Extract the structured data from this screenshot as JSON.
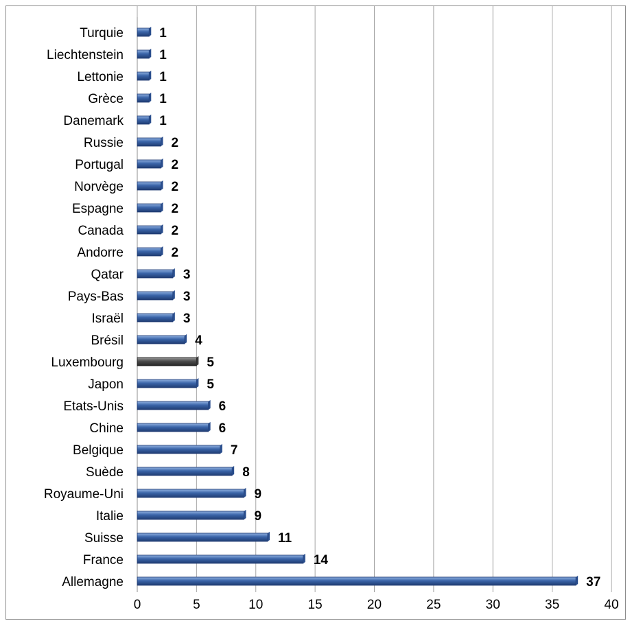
{
  "chart_data": {
    "type": "bar",
    "orientation": "horizontal",
    "categories": [
      "Turquie",
      "Liechtenstein",
      "Lettonie",
      "Grèce",
      "Danemark",
      "Russie",
      "Portugal",
      "Norvège",
      "Espagne",
      "Canada",
      "Andorre",
      "Qatar",
      "Pays-Bas",
      "Israël",
      "Brésil",
      "Luxembourg",
      "Japon",
      "Etats-Unis",
      "Chine",
      "Belgique",
      "Suède",
      "Royaume-Uni",
      "Italie",
      "Suisse",
      "France",
      "Allemagne"
    ],
    "values": [
      1,
      1,
      1,
      1,
      1,
      2,
      2,
      2,
      2,
      2,
      2,
      3,
      3,
      3,
      4,
      5,
      5,
      6,
      6,
      7,
      8,
      9,
      9,
      11,
      14,
      37
    ],
    "value_labels": [
      "1",
      "1",
      "1",
      "1",
      "1",
      "2",
      "2",
      "2",
      "2",
      "2",
      "2",
      "3",
      "3",
      "3",
      "4",
      "5",
      "5",
      "6",
      "6",
      "7",
      "8",
      "9",
      "9",
      "11",
      "14",
      "37"
    ],
    "highlight_category": "Luxembourg",
    "colors": {
      "bar": "#3a64a8",
      "highlight": "#4d4d4d",
      "grid": "#a6a6a6"
    },
    "xlim": [
      0,
      40
    ],
    "xticks": [
      0,
      5,
      10,
      15,
      20,
      25,
      30,
      35,
      40
    ],
    "xtick_labels": [
      "0",
      "5",
      "10",
      "15",
      "20",
      "25",
      "30",
      "35",
      "40"
    ],
    "grid": "vertical",
    "legend": "none",
    "title": "",
    "xlabel": "",
    "ylabel": ""
  }
}
